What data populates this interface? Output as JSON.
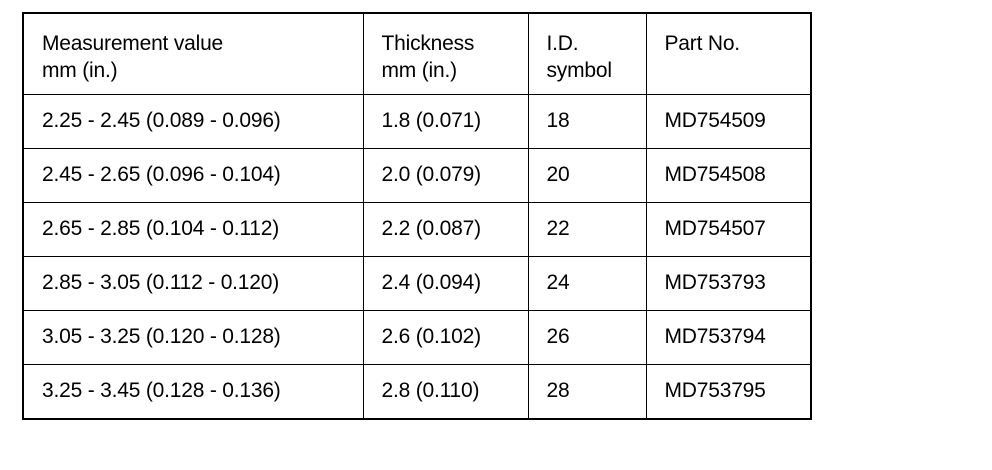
{
  "table": {
    "header": [
      [
        "Measurement value",
        "mm (in.)"
      ],
      [
        "Thickness",
        "mm (in.)"
      ],
      [
        "I.D.",
        "symbol"
      ],
      [
        "Part No."
      ]
    ],
    "rows": [
      [
        "2.25 - 2.45 (0.089 - 0.096)",
        "1.8 (0.071)",
        "18",
        "MD754509"
      ],
      [
        "2.45 - 2.65 (0.096 - 0.104)",
        "2.0 (0.079)",
        "20",
        "MD754508"
      ],
      [
        "2.65 - 2.85 (0.104 - 0.112)",
        "2.2 (0.087)",
        "22",
        "MD754507"
      ],
      [
        "2.85 - 3.05 (0.112 - 0.120)",
        "2.4 (0.094)",
        "24",
        "MD753793"
      ],
      [
        "3.05 - 3.25 (0.120 - 0.128)",
        "2.6 (0.102)",
        "26",
        "MD753794"
      ],
      [
        "3.25 - 3.45 (0.128 - 0.136)",
        "2.8 (0.110)",
        "28",
        "MD753795"
      ]
    ]
  }
}
